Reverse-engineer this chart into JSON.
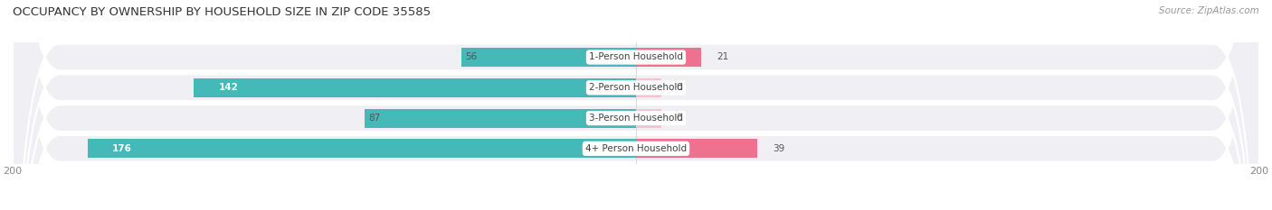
{
  "title": "OCCUPANCY BY OWNERSHIP BY HOUSEHOLD SIZE IN ZIP CODE 35585",
  "source": "Source: ZipAtlas.com",
  "categories": [
    "1-Person Household",
    "2-Person Household",
    "3-Person Household",
    "4+ Person Household"
  ],
  "owner_values": [
    56,
    142,
    87,
    176
  ],
  "renter_values": [
    21,
    0,
    0,
    39
  ],
  "owner_color": "#45b8b8",
  "renter_color": "#f07090",
  "renter_stub_color": "#f8c0d0",
  "row_bg_color": "#f0f0f4",
  "axis_max": 200,
  "axis_min": -200,
  "label_fontsize": 7.5,
  "title_fontsize": 9.5,
  "source_fontsize": 7.5,
  "legend_fontsize": 8,
  "tick_fontsize": 8,
  "category_fontsize": 7.5,
  "figsize": [
    14.06,
    2.33
  ],
  "dpi": 100
}
